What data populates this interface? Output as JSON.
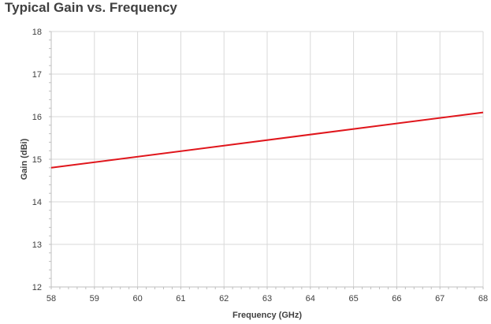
{
  "chart_data": {
    "type": "line",
    "title": "Typical Gain vs. Frequency",
    "xlabel": "Frequency (GHz)",
    "ylabel": "Gain (dBi)",
    "xlim": [
      58,
      68
    ],
    "ylim": [
      12,
      18
    ],
    "x_ticks": [
      58,
      59,
      60,
      61,
      62,
      63,
      64,
      65,
      66,
      67,
      68
    ],
    "y_ticks": [
      12,
      13,
      14,
      15,
      16,
      17,
      18
    ],
    "grid": true,
    "legend": "none",
    "series": [
      {
        "color": "#e0161c",
        "x": [
          58,
          68
        ],
        "y": [
          14.8,
          16.1
        ]
      }
    ]
  }
}
